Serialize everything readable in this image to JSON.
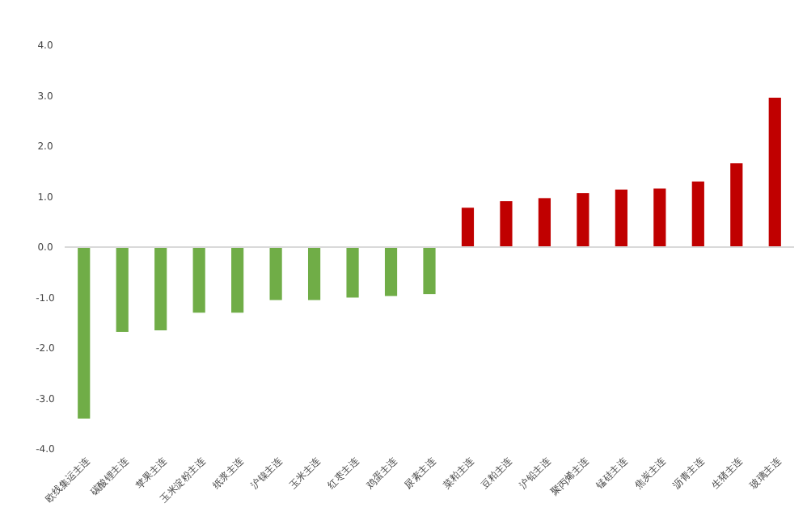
{
  "chart_data": {
    "type": "bar",
    "categories": [
      "欧线集运主连",
      "碳酸锂主连",
      "苹果主连",
      "玉米淀粉主连",
      "纸浆主连",
      "沪镍主连",
      "玉米主连",
      "红枣主连",
      "鸡蛋主连",
      "尿素主连",
      "菜粕主连",
      "豆粕主连",
      "沪铅主连",
      "聚丙烯主连",
      "锰硅主连",
      "焦炭主连",
      "沥青主连",
      "生猪主连",
      "玻璃主连"
    ],
    "values": [
      -3.4,
      -1.68,
      -1.65,
      -1.3,
      -1.3,
      -1.05,
      -1.05,
      -1.0,
      -0.97,
      -0.93,
      0.78,
      0.91,
      0.97,
      1.07,
      1.14,
      1.16,
      1.3,
      1.66,
      2.96
    ],
    "colors": [
      "#70ad47",
      "#70ad47",
      "#70ad47",
      "#70ad47",
      "#70ad47",
      "#70ad47",
      "#70ad47",
      "#70ad47",
      "#70ad47",
      "#70ad47",
      "#c00000",
      "#c00000",
      "#c00000",
      "#c00000",
      "#c00000",
      "#c00000",
      "#c00000",
      "#c00000",
      "#c00000"
    ],
    "ylim": [
      -4,
      4
    ],
    "yticks": [
      {
        "value": -4,
        "label": "-4.0"
      },
      {
        "value": -3,
        "label": "-3.0"
      },
      {
        "value": -2,
        "label": "-2.0"
      },
      {
        "value": -1,
        "label": "-1.0"
      },
      {
        "value": 0,
        "label": "0.0"
      },
      {
        "value": 1,
        "label": "1.0"
      },
      {
        "value": 2,
        "label": "2.0"
      },
      {
        "value": 3,
        "label": "3.0"
      },
      {
        "value": 4,
        "label": "4.0"
      }
    ]
  }
}
